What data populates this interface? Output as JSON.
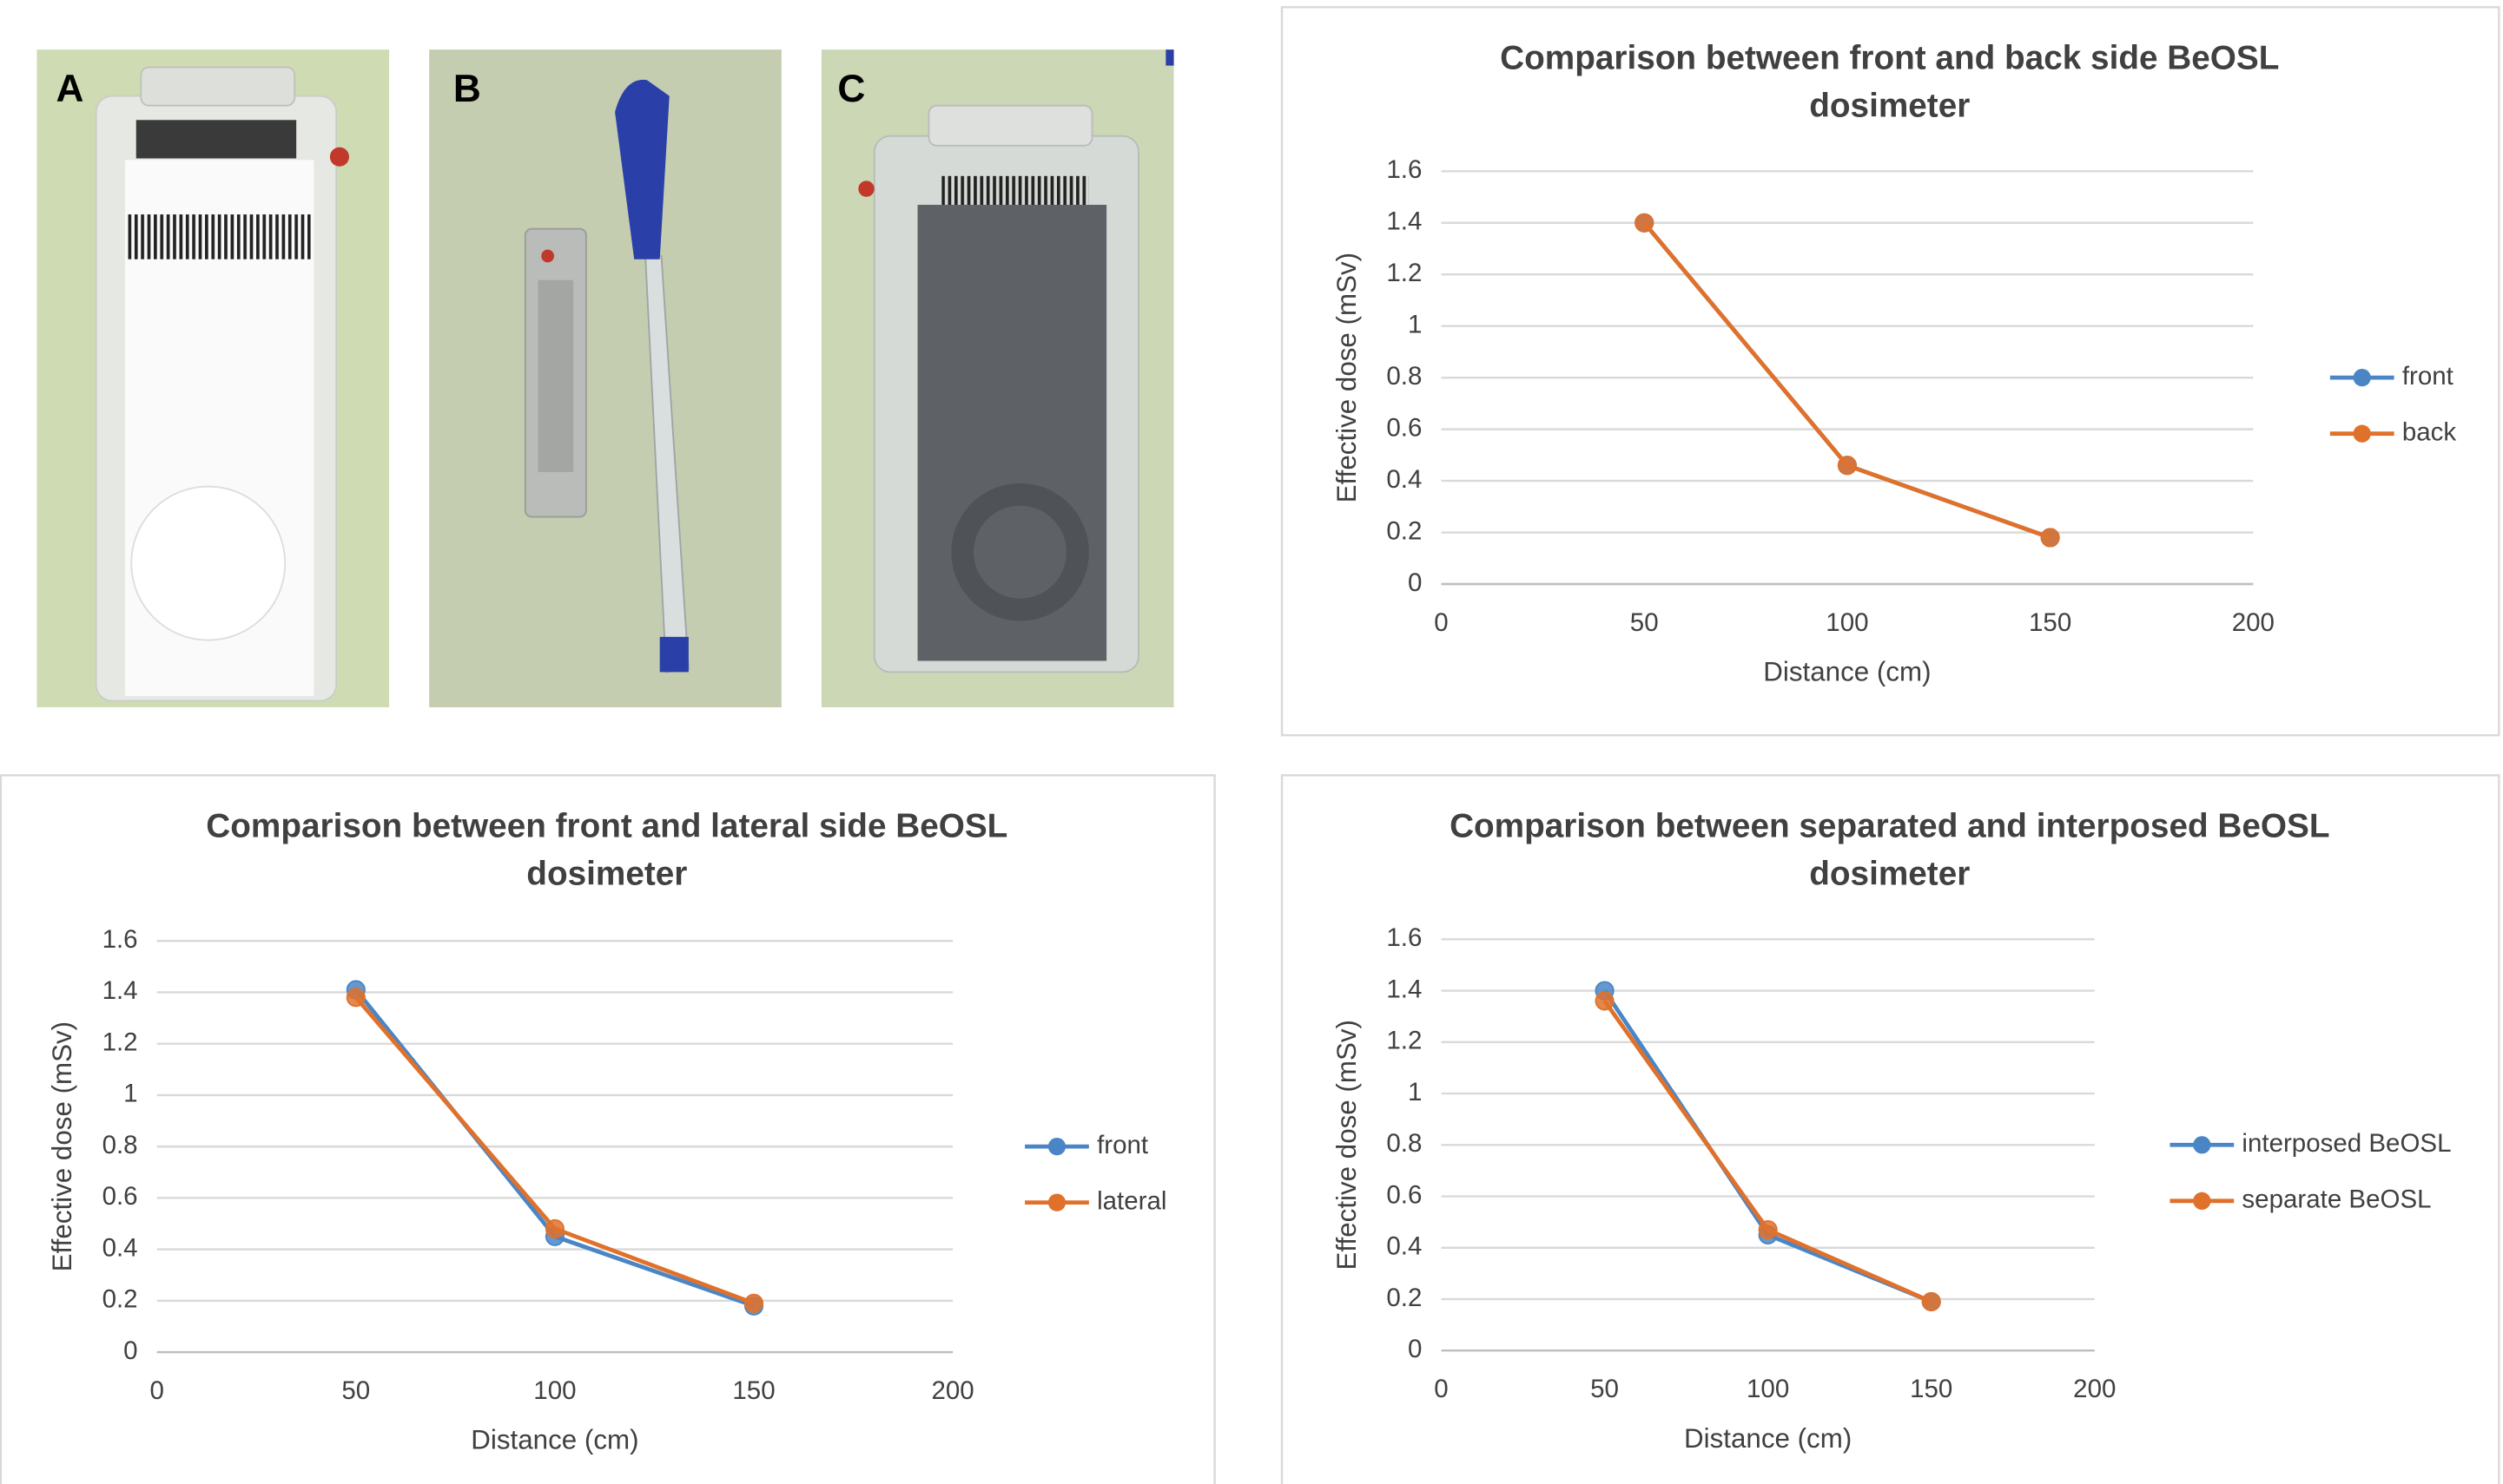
{
  "panel_labels": [
    "A",
    "B",
    "C"
  ],
  "chart_data": [
    {
      "type": "line",
      "title": "Comparison between front and back side BeOSL dosimeter",
      "x_label": "Distance (cm)",
      "y_label": "Effective dose (mSv)",
      "x": [
        50,
        100,
        150
      ],
      "series": [
        {
          "name": "front",
          "color": "#4a86c5",
          "values": [
            1.4,
            0.46,
            0.18
          ]
        },
        {
          "name": "back",
          "color": "#e0712b",
          "values": [
            1.4,
            0.46,
            0.18
          ]
        }
      ],
      "xlim": [
        0,
        200
      ],
      "xticks": [
        0,
        50,
        100,
        150,
        200
      ],
      "ylim": [
        0,
        1.6
      ],
      "yticks": [
        0,
        0.2,
        0.4,
        0.6,
        0.8,
        1,
        1.2,
        1.4,
        1.6
      ],
      "grid": true,
      "legend": "right"
    },
    {
      "type": "line",
      "title": "Comparison between front and lateral side BeOSL dosimeter",
      "x_label": "Distance (cm)",
      "y_label": "Effective dose (mSv)",
      "x": [
        50,
        100,
        150
      ],
      "series": [
        {
          "name": "front",
          "color": "#4a86c5",
          "values": [
            1.41,
            0.45,
            0.18
          ]
        },
        {
          "name": "lateral",
          "color": "#e0712b",
          "values": [
            1.38,
            0.48,
            0.19
          ]
        }
      ],
      "xlim": [
        0,
        200
      ],
      "xticks": [
        0,
        50,
        100,
        150,
        200
      ],
      "ylim": [
        0,
        1.6
      ],
      "yticks": [
        0,
        0.2,
        0.4,
        0.6,
        0.8,
        1,
        1.2,
        1.4,
        1.6
      ],
      "grid": true,
      "legend": "right"
    },
    {
      "type": "line",
      "title": "Comparison between separated and interposed BeOSL dosimeter",
      "x_label": "Distance (cm)",
      "y_label": "Effective dose (mSv)",
      "x": [
        50,
        100,
        150
      ],
      "series": [
        {
          "name": "interposed BeOSL",
          "color": "#4a86c5",
          "values": [
            1.4,
            0.45,
            0.19
          ]
        },
        {
          "name": "separate BeOSL",
          "color": "#e0712b",
          "values": [
            1.36,
            0.47,
            0.19
          ]
        }
      ],
      "xlim": [
        0,
        200
      ],
      "xticks": [
        0,
        50,
        100,
        150,
        200
      ],
      "ylim": [
        0,
        1.6
      ],
      "yticks": [
        0,
        0.2,
        0.4,
        0.6,
        0.8,
        1,
        1.2,
        1.4,
        1.6
      ],
      "grid": true,
      "legend": "right"
    }
  ]
}
